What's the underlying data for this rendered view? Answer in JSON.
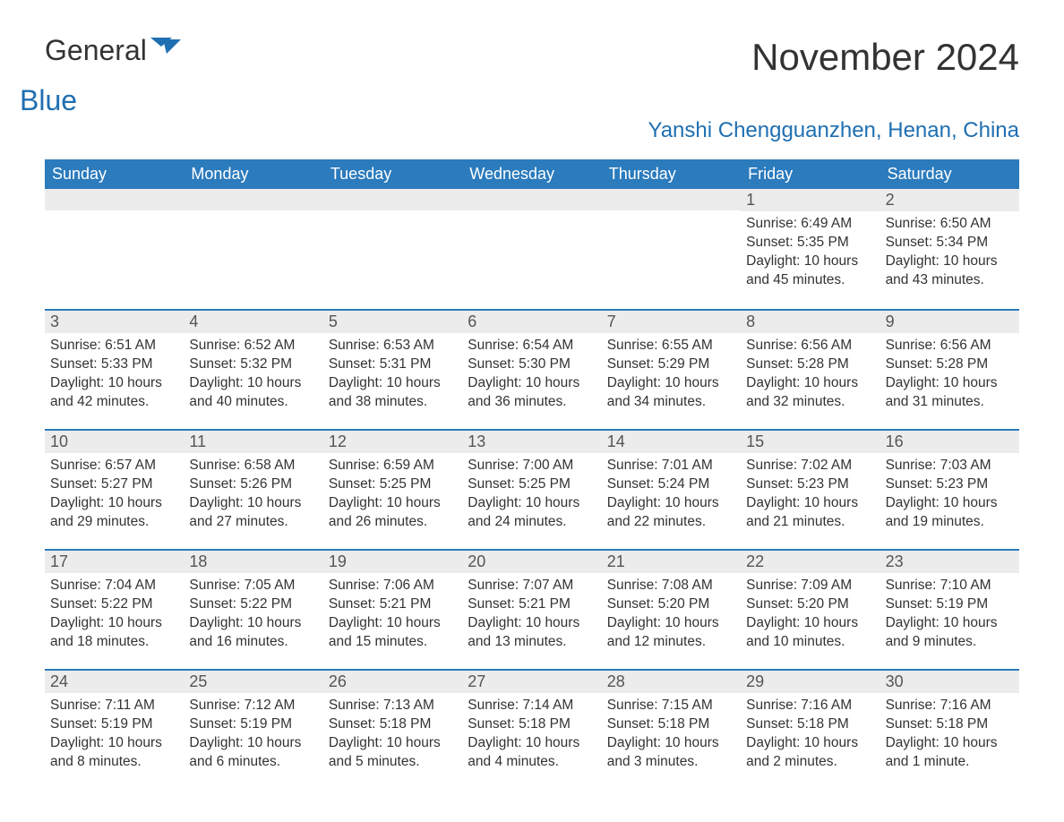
{
  "logo": {
    "word1": "General",
    "word2": "Blue",
    "flag_color": "#1f6fb2"
  },
  "title": "November 2024",
  "subtitle": "Yanshi Chengguanzhen, Henan, China",
  "colors": {
    "header_bg": "#2b7bbd",
    "header_text": "#ffffff",
    "daybar_bg": "#ececec",
    "rule": "#2b7bbd",
    "accent": "#1f6fb2",
    "body_text": "#333333"
  },
  "daysOfWeek": [
    "Sunday",
    "Monday",
    "Tuesday",
    "Wednesday",
    "Thursday",
    "Friday",
    "Saturday"
  ],
  "weeks": [
    [
      null,
      null,
      null,
      null,
      null,
      {
        "n": "1",
        "sunrise": "Sunrise: 6:49 AM",
        "sunset": "Sunset: 5:35 PM",
        "daylight": "Daylight: 10 hours and 45 minutes."
      },
      {
        "n": "2",
        "sunrise": "Sunrise: 6:50 AM",
        "sunset": "Sunset: 5:34 PM",
        "daylight": "Daylight: 10 hours and 43 minutes."
      }
    ],
    [
      {
        "n": "3",
        "sunrise": "Sunrise: 6:51 AM",
        "sunset": "Sunset: 5:33 PM",
        "daylight": "Daylight: 10 hours and 42 minutes."
      },
      {
        "n": "4",
        "sunrise": "Sunrise: 6:52 AM",
        "sunset": "Sunset: 5:32 PM",
        "daylight": "Daylight: 10 hours and 40 minutes."
      },
      {
        "n": "5",
        "sunrise": "Sunrise: 6:53 AM",
        "sunset": "Sunset: 5:31 PM",
        "daylight": "Daylight: 10 hours and 38 minutes."
      },
      {
        "n": "6",
        "sunrise": "Sunrise: 6:54 AM",
        "sunset": "Sunset: 5:30 PM",
        "daylight": "Daylight: 10 hours and 36 minutes."
      },
      {
        "n": "7",
        "sunrise": "Sunrise: 6:55 AM",
        "sunset": "Sunset: 5:29 PM",
        "daylight": "Daylight: 10 hours and 34 minutes."
      },
      {
        "n": "8",
        "sunrise": "Sunrise: 6:56 AM",
        "sunset": "Sunset: 5:28 PM",
        "daylight": "Daylight: 10 hours and 32 minutes."
      },
      {
        "n": "9",
        "sunrise": "Sunrise: 6:56 AM",
        "sunset": "Sunset: 5:28 PM",
        "daylight": "Daylight: 10 hours and 31 minutes."
      }
    ],
    [
      {
        "n": "10",
        "sunrise": "Sunrise: 6:57 AM",
        "sunset": "Sunset: 5:27 PM",
        "daylight": "Daylight: 10 hours and 29 minutes."
      },
      {
        "n": "11",
        "sunrise": "Sunrise: 6:58 AM",
        "sunset": "Sunset: 5:26 PM",
        "daylight": "Daylight: 10 hours and 27 minutes."
      },
      {
        "n": "12",
        "sunrise": "Sunrise: 6:59 AM",
        "sunset": "Sunset: 5:25 PM",
        "daylight": "Daylight: 10 hours and 26 minutes."
      },
      {
        "n": "13",
        "sunrise": "Sunrise: 7:00 AM",
        "sunset": "Sunset: 5:25 PM",
        "daylight": "Daylight: 10 hours and 24 minutes."
      },
      {
        "n": "14",
        "sunrise": "Sunrise: 7:01 AM",
        "sunset": "Sunset: 5:24 PM",
        "daylight": "Daylight: 10 hours and 22 minutes."
      },
      {
        "n": "15",
        "sunrise": "Sunrise: 7:02 AM",
        "sunset": "Sunset: 5:23 PM",
        "daylight": "Daylight: 10 hours and 21 minutes."
      },
      {
        "n": "16",
        "sunrise": "Sunrise: 7:03 AM",
        "sunset": "Sunset: 5:23 PM",
        "daylight": "Daylight: 10 hours and 19 minutes."
      }
    ],
    [
      {
        "n": "17",
        "sunrise": "Sunrise: 7:04 AM",
        "sunset": "Sunset: 5:22 PM",
        "daylight": "Daylight: 10 hours and 18 minutes."
      },
      {
        "n": "18",
        "sunrise": "Sunrise: 7:05 AM",
        "sunset": "Sunset: 5:22 PM",
        "daylight": "Daylight: 10 hours and 16 minutes."
      },
      {
        "n": "19",
        "sunrise": "Sunrise: 7:06 AM",
        "sunset": "Sunset: 5:21 PM",
        "daylight": "Daylight: 10 hours and 15 minutes."
      },
      {
        "n": "20",
        "sunrise": "Sunrise: 7:07 AM",
        "sunset": "Sunset: 5:21 PM",
        "daylight": "Daylight: 10 hours and 13 minutes."
      },
      {
        "n": "21",
        "sunrise": "Sunrise: 7:08 AM",
        "sunset": "Sunset: 5:20 PM",
        "daylight": "Daylight: 10 hours and 12 minutes."
      },
      {
        "n": "22",
        "sunrise": "Sunrise: 7:09 AM",
        "sunset": "Sunset: 5:20 PM",
        "daylight": "Daylight: 10 hours and 10 minutes."
      },
      {
        "n": "23",
        "sunrise": "Sunrise: 7:10 AM",
        "sunset": "Sunset: 5:19 PM",
        "daylight": "Daylight: 10 hours and 9 minutes."
      }
    ],
    [
      {
        "n": "24",
        "sunrise": "Sunrise: 7:11 AM",
        "sunset": "Sunset: 5:19 PM",
        "daylight": "Daylight: 10 hours and 8 minutes."
      },
      {
        "n": "25",
        "sunrise": "Sunrise: 7:12 AM",
        "sunset": "Sunset: 5:19 PM",
        "daylight": "Daylight: 10 hours and 6 minutes."
      },
      {
        "n": "26",
        "sunrise": "Sunrise: 7:13 AM",
        "sunset": "Sunset: 5:18 PM",
        "daylight": "Daylight: 10 hours and 5 minutes."
      },
      {
        "n": "27",
        "sunrise": "Sunrise: 7:14 AM",
        "sunset": "Sunset: 5:18 PM",
        "daylight": "Daylight: 10 hours and 4 minutes."
      },
      {
        "n": "28",
        "sunrise": "Sunrise: 7:15 AM",
        "sunset": "Sunset: 5:18 PM",
        "daylight": "Daylight: 10 hours and 3 minutes."
      },
      {
        "n": "29",
        "sunrise": "Sunrise: 7:16 AM",
        "sunset": "Sunset: 5:18 PM",
        "daylight": "Daylight: 10 hours and 2 minutes."
      },
      {
        "n": "30",
        "sunrise": "Sunrise: 7:16 AM",
        "sunset": "Sunset: 5:18 PM",
        "daylight": "Daylight: 10 hours and 1 minute."
      }
    ]
  ]
}
